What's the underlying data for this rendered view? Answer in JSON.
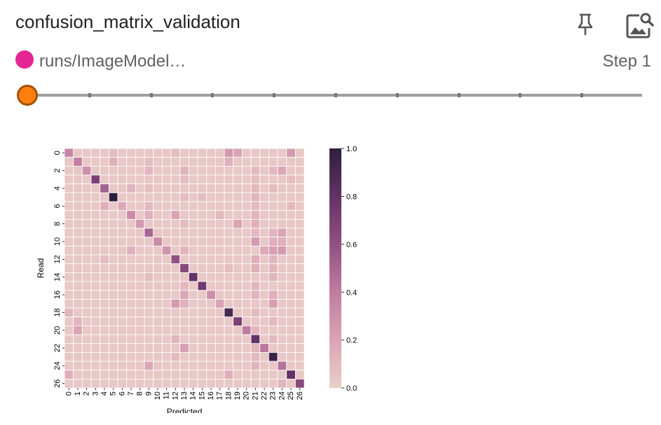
{
  "card": {
    "title": "confusion_matrix_validation",
    "run_name": "runs/ImageModel…",
    "step_label": "Step 1"
  },
  "icons": {
    "pin": "pin-icon",
    "image_search": "image-search-icon"
  },
  "colors": {
    "run": "#e52592",
    "slider_thumb": "#ff7f0e"
  },
  "slider": {
    "ticks": 9,
    "value_index": 0
  },
  "chart_data": {
    "type": "heatmap",
    "xlabel": "Predicted",
    "ylabel": "Read",
    "classes": [
      "0",
      "1",
      "2",
      "3",
      "4",
      "5",
      "6",
      "7",
      "8",
      "9",
      "10",
      "11",
      "12",
      "13",
      "14",
      "15",
      "16",
      "17",
      "18",
      "19",
      "20",
      "21",
      "22",
      "23",
      "24",
      "25",
      "26"
    ],
    "y_tick_labels": [
      "0",
      "2",
      "4",
      "6",
      "8",
      "10",
      "12",
      "14",
      "16",
      "18",
      "20",
      "22",
      "24",
      "26"
    ],
    "colorbar": {
      "min": 0.0,
      "max": 1.0,
      "ticks": [
        "0.0",
        "0.2",
        "0.4",
        "0.6",
        "0.8",
        "1.0"
      ]
    },
    "diagonal": [
      0.35,
      0.38,
      0.3,
      0.7,
      0.52,
      1.0,
      0.18,
      0.32,
      0.25,
      0.5,
      0.32,
      0.28,
      0.6,
      0.65,
      0.8,
      0.75,
      0.3,
      0.2,
      0.9,
      0.7,
      0.4,
      0.8,
      0.42,
      0.95,
      0.45,
      0.8,
      0.65
    ],
    "off_diagonal_background": 0.03,
    "off_diagonal": [
      [
        0,
        18,
        0.25
      ],
      [
        0,
        19,
        0.2
      ],
      [
        0,
        25,
        0.25
      ],
      [
        0,
        5,
        0.08
      ],
      [
        0,
        12,
        0.08
      ],
      [
        1,
        5,
        0.15
      ],
      [
        1,
        18,
        0.15
      ],
      [
        1,
        9,
        0.08
      ],
      [
        2,
        9,
        0.12
      ],
      [
        2,
        13,
        0.12
      ],
      [
        2,
        21,
        0.1
      ],
      [
        2,
        24,
        0.18
      ],
      [
        2,
        23,
        0.1
      ],
      [
        3,
        13,
        0.08
      ],
      [
        3,
        21,
        0.08
      ],
      [
        3,
        25,
        0.08
      ],
      [
        4,
        7,
        0.12
      ],
      [
        4,
        9,
        0.08
      ],
      [
        4,
        21,
        0.1
      ],
      [
        4,
        23,
        0.08
      ],
      [
        5,
        21,
        0.12
      ],
      [
        5,
        15,
        0.08
      ],
      [
        5,
        13,
        0.08
      ],
      [
        6,
        4,
        0.15
      ],
      [
        6,
        9,
        0.1
      ],
      [
        6,
        21,
        0.1
      ],
      [
        6,
        25,
        0.1
      ],
      [
        7,
        9,
        0.15
      ],
      [
        7,
        12,
        0.2
      ],
      [
        7,
        17,
        0.1
      ],
      [
        7,
        21,
        0.12
      ],
      [
        8,
        19,
        0.2
      ],
      [
        8,
        21,
        0.15
      ],
      [
        8,
        13,
        0.08
      ],
      [
        9,
        21,
        0.1
      ],
      [
        9,
        23,
        0.12
      ],
      [
        9,
        24,
        0.2
      ],
      [
        10,
        21,
        0.25
      ],
      [
        10,
        23,
        0.15
      ],
      [
        10,
        24,
        0.15
      ],
      [
        11,
        7,
        0.15
      ],
      [
        11,
        13,
        0.12
      ],
      [
        11,
        22,
        0.18
      ],
      [
        11,
        23,
        0.22
      ],
      [
        11,
        24,
        0.25
      ],
      [
        12,
        4,
        0.08
      ],
      [
        12,
        21,
        0.15
      ],
      [
        12,
        23,
        0.12
      ],
      [
        13,
        21,
        0.15
      ],
      [
        13,
        23,
        0.12
      ],
      [
        13,
        18,
        0.08
      ],
      [
        14,
        23,
        0.12
      ],
      [
        14,
        9,
        0.08
      ],
      [
        15,
        21,
        0.12
      ],
      [
        15,
        13,
        0.1
      ],
      [
        16,
        13,
        0.18
      ],
      [
        16,
        21,
        0.12
      ],
      [
        16,
        23,
        0.15
      ],
      [
        17,
        12,
        0.25
      ],
      [
        17,
        13,
        0.15
      ],
      [
        17,
        23,
        0.22
      ],
      [
        18,
        0,
        0.12
      ],
      [
        18,
        21,
        0.1
      ],
      [
        19,
        1,
        0.12
      ],
      [
        19,
        23,
        0.1
      ],
      [
        20,
        1,
        0.2
      ],
      [
        20,
        21,
        0.12
      ],
      [
        21,
        12,
        0.12
      ],
      [
        21,
        23,
        0.1
      ],
      [
        22,
        13,
        0.22
      ],
      [
        22,
        21,
        0.12
      ],
      [
        23,
        12,
        0.1
      ],
      [
        23,
        21,
        0.1
      ],
      [
        24,
        9,
        0.18
      ],
      [
        24,
        21,
        0.12
      ],
      [
        25,
        0,
        0.15
      ],
      [
        25,
        18,
        0.15
      ],
      [
        26,
        24,
        0.12
      ]
    ]
  }
}
